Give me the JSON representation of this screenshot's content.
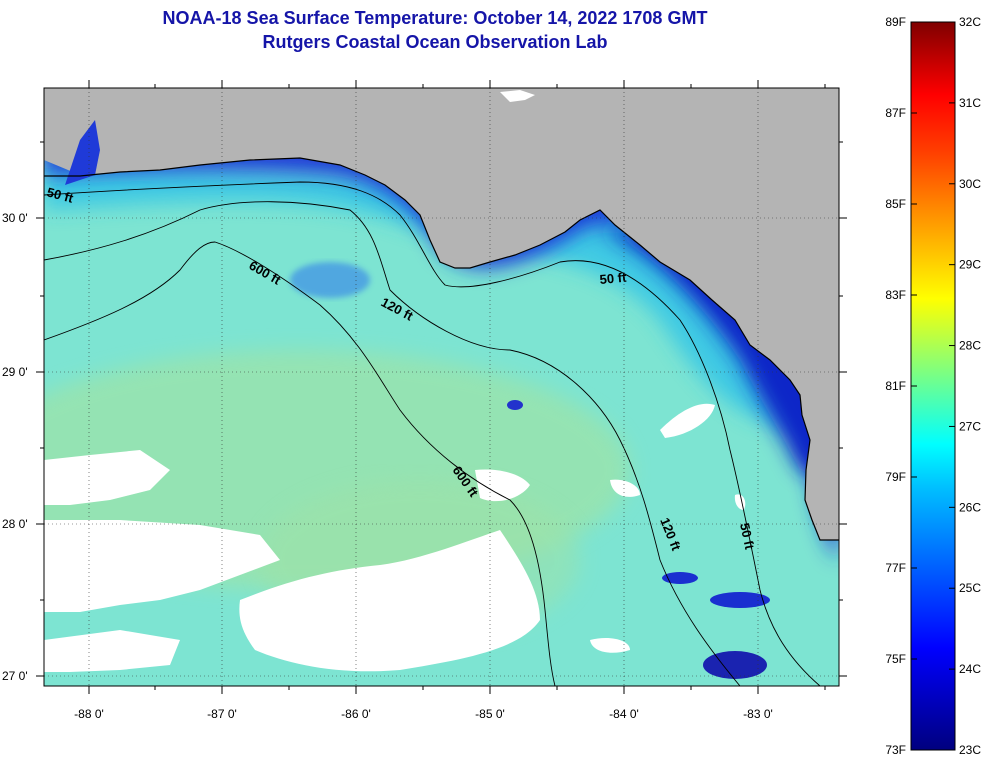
{
  "title": "NOAA-18 Sea Surface Temperature:  October 14, 2022 1708 GMT",
  "subtitle": "Rutgers Coastal Ocean Observation Lab",
  "map": {
    "lon_ticks": [
      "-88 0'",
      "-87 0'",
      "-86 0'",
      "-85 0'",
      "-84 0'",
      "-83 0'"
    ],
    "lat_ticks": [
      "30 0'",
      "29 0'",
      "28 0'",
      "27 0'"
    ],
    "contour_labels": [
      "50 ft",
      "600 ft",
      "120 ft",
      "50 ft",
      "600 ft",
      "120 ft",
      "50 ft"
    ],
    "colors": {
      "land": "#b4b4b4",
      "cloud": "#ffffff",
      "warm_water": "#7fe3d4",
      "cool_water": "#1f3ad8"
    }
  },
  "colorbar": {
    "fahrenheit": [
      "89F",
      "87F",
      "85F",
      "83F",
      "81F",
      "79F",
      "77F",
      "75F",
      "73F"
    ],
    "celsius": [
      "32C",
      "31C",
      "30C",
      "29C",
      "28C",
      "27C",
      "26C",
      "25C",
      "24C",
      "23C"
    ]
  }
}
